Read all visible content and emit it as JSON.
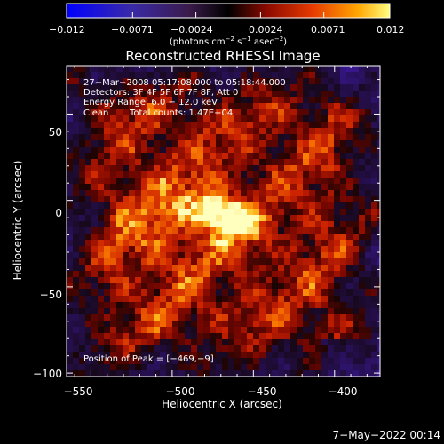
{
  "colorbar": {
    "ticks": [
      "−0.012",
      "−0.0071",
      "−0.0024",
      "0.0024",
      "0.0071",
      "0.012"
    ],
    "units_prefix": "(photons cm",
    "units_exp1": "−2",
    "units_mid1": " s",
    "units_exp2": "−1",
    "units_mid2": " asec",
    "units_exp3": "−2",
    "units_suffix": ")"
  },
  "title": "Reconstructed RHESSI Image",
  "info": {
    "time_range": "27−Mar−2008 05:17:08.000 to 05:18:44.000",
    "detectors": "Detectors: 3F 4F 5F 6F 7F 8F, Att 0",
    "energy": "Energy Range: 6.0 − 12.0 keV",
    "method": "Clean",
    "counts": "Total counts: 1.47E+04"
  },
  "peak_label": "Position of Peak = [−469,−9]",
  "axes": {
    "xlabel": "Heliocentric X (arcsec)",
    "ylabel": "Heliocentric Y (arcsec)",
    "xticks": [
      "−550",
      "−500",
      "−450",
      "−400"
    ],
    "yticks": [
      "50",
      "0",
      "−50",
      "−100"
    ]
  },
  "footer_timestamp": "7−May−2022 00:14",
  "colors": {
    "background": "#000000",
    "text": "#ffffff"
  },
  "chart_data": {
    "type": "heatmap",
    "title": "Reconstructed RHESSI Image",
    "xlabel": "Heliocentric X (arcsec)",
    "ylabel": "Heliocentric Y (arcsec)",
    "xlim": [
      -565,
      -372
    ],
    "ylim": [
      -102,
      78
    ],
    "clim": [
      -0.012,
      0.012
    ],
    "peak": [
      -469,
      -9
    ],
    "colorbar_ticks": [
      -0.012,
      -0.0071,
      -0.0024,
      0.0024,
      0.0071,
      0.012
    ]
  }
}
